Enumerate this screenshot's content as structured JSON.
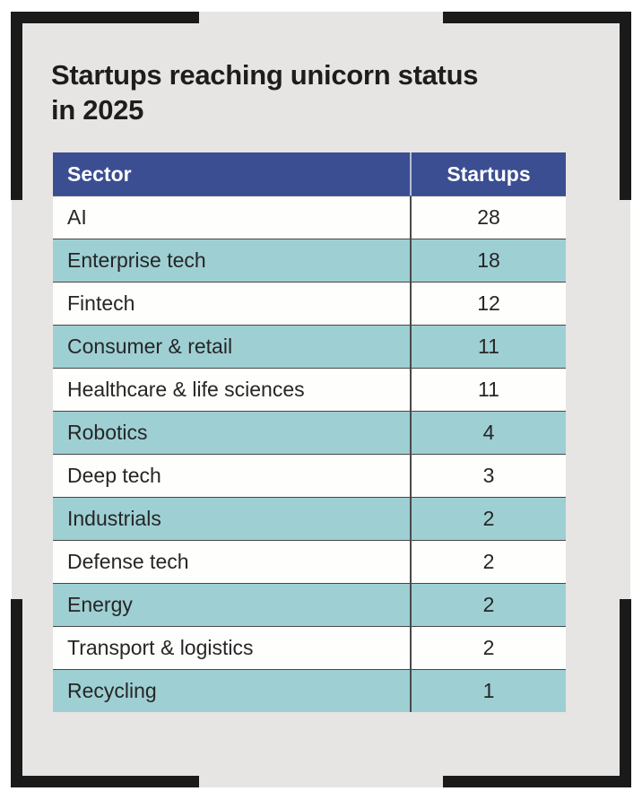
{
  "title": {
    "line1": "Startups reaching unicorn status",
    "line2": "in 2025"
  },
  "colors": {
    "page_background": "#ffffff",
    "card_background": "#e6e5e3",
    "frame_black": "#1a1a1a",
    "header_blue": "#3b4e92",
    "stripe_teal": "#9ecfd3",
    "row_white": "#fefefc",
    "text_dark": "#262626",
    "divider_dark": "#4a4a4a"
  },
  "table": {
    "headers": {
      "sector": "Sector",
      "startups": "Startups"
    },
    "rows": [
      {
        "sector": "AI",
        "startups": "28"
      },
      {
        "sector": "Enterprise tech",
        "startups": "18"
      },
      {
        "sector": "Fintech",
        "startups": "12"
      },
      {
        "sector": "Consumer & retail",
        "startups": "11"
      },
      {
        "sector": "Healthcare & life sciences",
        "startups": "11"
      },
      {
        "sector": "Robotics",
        "startups": "4"
      },
      {
        "sector": "Deep tech",
        "startups": "3"
      },
      {
        "sector": "Industrials",
        "startups": "2"
      },
      {
        "sector": "Defense tech",
        "startups": "2"
      },
      {
        "sector": "Energy",
        "startups": "2"
      },
      {
        "sector": "Transport & logistics",
        "startups": "2"
      },
      {
        "sector": "Recycling",
        "startups": "1"
      }
    ]
  },
  "chart_data": {
    "type": "table",
    "title": "Startups reaching unicorn status in 2025",
    "columns": [
      "Sector",
      "Startups"
    ],
    "categories": [
      "AI",
      "Enterprise tech",
      "Fintech",
      "Consumer & retail",
      "Healthcare & life sciences",
      "Robotics",
      "Deep tech",
      "Industrials",
      "Defense tech",
      "Energy",
      "Transport & logistics",
      "Recycling"
    ],
    "values": [
      28,
      18,
      12,
      11,
      11,
      4,
      3,
      2,
      2,
      2,
      2,
      1
    ],
    "legend_position": "none",
    "grid": "row-dividers"
  }
}
